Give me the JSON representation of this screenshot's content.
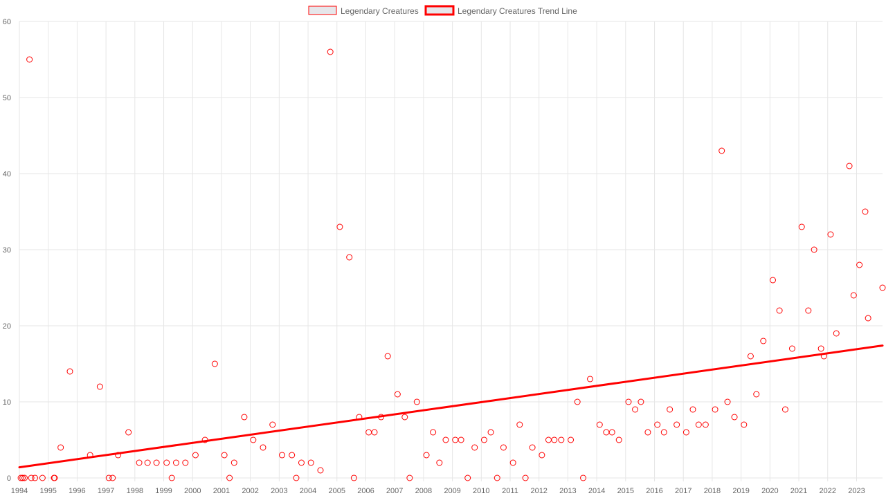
{
  "chart_data": {
    "type": "scatter",
    "x_axis": {
      "type": "time",
      "min": 1994.0,
      "max": 2023.9,
      "ticks": [
        "1994",
        "1995",
        "1996",
        "1997",
        "1998",
        "1999",
        "2000",
        "2001",
        "2002",
        "2003",
        "2004",
        "2005",
        "2006",
        "2007",
        "2008",
        "2009",
        "2010",
        "2011",
        "2012",
        "2013",
        "2014",
        "2015",
        "2016",
        "2017",
        "2018",
        "2019",
        "2020",
        "2021",
        "2022",
        "2023"
      ]
    },
    "y_axis": {
      "min": 0,
      "max": 60,
      "ticks": [
        0,
        10,
        20,
        30,
        40,
        50,
        60
      ]
    },
    "grid": true,
    "legend_position": "top-center",
    "colors": {
      "series": "#ff0000",
      "legend_fill": "#e6e6ea",
      "grid": "#e6e6e6",
      "text": "#666666"
    },
    "series": [
      {
        "name": "Legendary Creatures",
        "kind": "scatter",
        "points": [
          [
            1994.05,
            0
          ],
          [
            1994.11,
            0
          ],
          [
            1994.18,
            0
          ],
          [
            1994.35,
            55
          ],
          [
            1994.41,
            0
          ],
          [
            1994.54,
            0
          ],
          [
            1994.8,
            0
          ],
          [
            1995.2,
            0
          ],
          [
            1995.22,
            0
          ],
          [
            1995.43,
            4
          ],
          [
            1995.75,
            14
          ],
          [
            1996.45,
            3
          ],
          [
            1996.79,
            12
          ],
          [
            1997.1,
            0
          ],
          [
            1997.23,
            0
          ],
          [
            1997.42,
            3
          ],
          [
            1997.78,
            6
          ],
          [
            1998.15,
            2
          ],
          [
            1998.44,
            2
          ],
          [
            1998.75,
            2
          ],
          [
            1999.1,
            2
          ],
          [
            1999.28,
            0
          ],
          [
            1999.43,
            2
          ],
          [
            1999.75,
            2
          ],
          [
            2000.1,
            3
          ],
          [
            2000.43,
            5
          ],
          [
            2000.77,
            15
          ],
          [
            2001.1,
            3
          ],
          [
            2001.28,
            0
          ],
          [
            2001.44,
            2
          ],
          [
            2001.79,
            8
          ],
          [
            2002.1,
            5
          ],
          [
            2002.44,
            4
          ],
          [
            2002.77,
            7
          ],
          [
            2003.1,
            3
          ],
          [
            2003.44,
            3
          ],
          [
            2003.59,
            0
          ],
          [
            2003.77,
            2
          ],
          [
            2004.1,
            2
          ],
          [
            2004.43,
            1
          ],
          [
            2004.77,
            56
          ],
          [
            2005.1,
            33
          ],
          [
            2005.43,
            29
          ],
          [
            2005.59,
            0
          ],
          [
            2005.77,
            8
          ],
          [
            2006.1,
            6
          ],
          [
            2006.3,
            6
          ],
          [
            2006.53,
            8
          ],
          [
            2006.76,
            16
          ],
          [
            2007.1,
            11
          ],
          [
            2007.35,
            8
          ],
          [
            2007.52,
            0
          ],
          [
            2007.77,
            10
          ],
          [
            2008.1,
            3
          ],
          [
            2008.33,
            6
          ],
          [
            2008.55,
            2
          ],
          [
            2008.77,
            5
          ],
          [
            2009.1,
            5
          ],
          [
            2009.3,
            5
          ],
          [
            2009.53,
            0
          ],
          [
            2009.77,
            4
          ],
          [
            2010.1,
            5
          ],
          [
            2010.33,
            6
          ],
          [
            2010.55,
            0
          ],
          [
            2010.77,
            4
          ],
          [
            2011.1,
            2
          ],
          [
            2011.33,
            7
          ],
          [
            2011.53,
            0
          ],
          [
            2011.77,
            4
          ],
          [
            2012.1,
            3
          ],
          [
            2012.33,
            5
          ],
          [
            2012.53,
            5
          ],
          [
            2012.77,
            5
          ],
          [
            2013.1,
            5
          ],
          [
            2013.33,
            10
          ],
          [
            2013.53,
            0
          ],
          [
            2013.77,
            13
          ],
          [
            2014.1,
            7
          ],
          [
            2014.33,
            6
          ],
          [
            2014.53,
            6
          ],
          [
            2014.77,
            5
          ],
          [
            2015.1,
            10
          ],
          [
            2015.33,
            9
          ],
          [
            2015.53,
            10
          ],
          [
            2015.77,
            6
          ],
          [
            2016.1,
            7
          ],
          [
            2016.33,
            6
          ],
          [
            2016.53,
            9
          ],
          [
            2016.77,
            7
          ],
          [
            2017.1,
            6
          ],
          [
            2017.33,
            9
          ],
          [
            2017.53,
            7
          ],
          [
            2017.77,
            7
          ],
          [
            2018.1,
            9
          ],
          [
            2018.33,
            43
          ],
          [
            2018.53,
            10
          ],
          [
            2018.77,
            8
          ],
          [
            2019.1,
            7
          ],
          [
            2019.33,
            16
          ],
          [
            2019.53,
            11
          ],
          [
            2019.77,
            18
          ],
          [
            2020.1,
            26
          ],
          [
            2020.33,
            22
          ],
          [
            2020.53,
            9
          ],
          [
            2020.77,
            17
          ],
          [
            2021.1,
            33
          ],
          [
            2021.33,
            22
          ],
          [
            2021.53,
            30
          ],
          [
            2021.77,
            17
          ],
          [
            2021.87,
            16
          ],
          [
            2022.1,
            32
          ],
          [
            2022.3,
            19
          ],
          [
            2022.75,
            41
          ],
          [
            2022.9,
            24
          ],
          [
            2023.1,
            28
          ],
          [
            2023.3,
            35
          ],
          [
            2023.4,
            21
          ],
          [
            2023.9,
            25
          ]
        ]
      },
      {
        "name": "Legendary Creatures Trend Line",
        "kind": "line",
        "points": [
          [
            1994.0,
            1.4
          ],
          [
            2023.9,
            17.4
          ]
        ]
      }
    ]
  }
}
